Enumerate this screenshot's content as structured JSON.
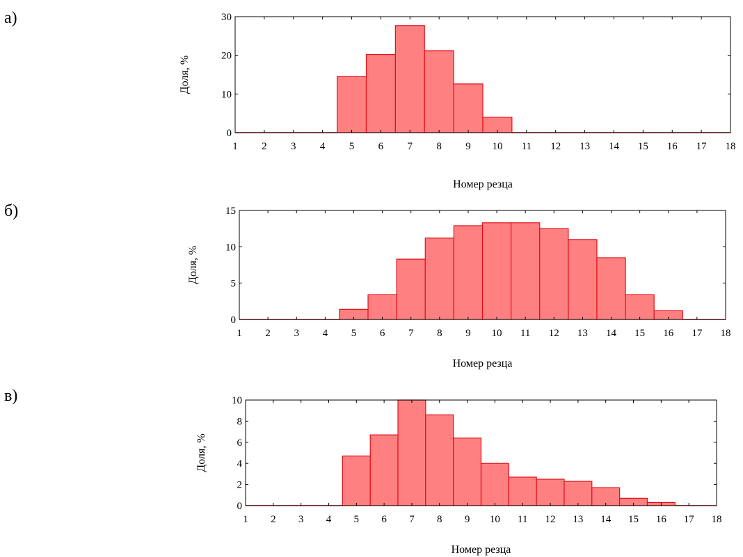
{
  "panels": [
    {
      "label": "а)"
    },
    {
      "label": "б)"
    },
    {
      "label": "в)"
    }
  ],
  "colors": {
    "bar_fill": "#ff8080",
    "bar_stroke": "#e0101a",
    "axis": "#000000"
  },
  "chart_data": [
    {
      "type": "bar",
      "panel": "а)",
      "xlabel": "Номер резца",
      "ylabel": "Доля, %",
      "categories": [
        1,
        2,
        3,
        4,
        5,
        6,
        7,
        8,
        9,
        10,
        11,
        12,
        13,
        14,
        15,
        16,
        17,
        18
      ],
      "x_ticks": [
        1,
        2,
        3,
        4,
        5,
        6,
        7,
        8,
        9,
        10,
        11,
        12,
        13,
        14,
        15,
        16,
        17,
        18
      ],
      "values": [
        0,
        0,
        0,
        0,
        14.5,
        20.2,
        27.7,
        21.2,
        12.6,
        4.0,
        0,
        0,
        0,
        0,
        0,
        0,
        0,
        0
      ],
      "xlim": [
        1,
        18
      ],
      "ylim": [
        0,
        30
      ],
      "y_ticks": [
        0,
        10,
        20,
        30
      ],
      "grid": false
    },
    {
      "type": "bar",
      "panel": "б)",
      "xlabel": "Номер резца",
      "ylabel": "Доля, %",
      "categories": [
        1,
        2,
        3,
        4,
        5,
        6,
        7,
        8,
        9,
        10,
        11,
        12,
        13,
        14,
        15,
        16,
        17,
        18
      ],
      "x_ticks": [
        1,
        2,
        3,
        4,
        5,
        6,
        7,
        8,
        9,
        10,
        11,
        12,
        13,
        14,
        15,
        16,
        17,
        18
      ],
      "values": [
        0,
        0,
        0,
        0,
        1.4,
        3.4,
        8.3,
        11.2,
        12.9,
        13.3,
        13.3,
        12.5,
        11.0,
        8.5,
        3.4,
        1.2,
        0,
        0
      ],
      "xlim": [
        1,
        18
      ],
      "ylim": [
        0,
        15
      ],
      "y_ticks": [
        0,
        5,
        10,
        15
      ],
      "grid": false
    },
    {
      "type": "bar",
      "panel": "в)",
      "xlabel": "Номер резца",
      "ylabel": "Доля, %",
      "categories": [
        1,
        2,
        3,
        4,
        5,
        6,
        7,
        8,
        9,
        10,
        11,
        12,
        13,
        14,
        15,
        16,
        17,
        18
      ],
      "x_ticks": [
        1,
        2,
        3,
        4,
        5,
        6,
        7,
        8,
        9,
        10,
        11,
        12,
        13,
        14,
        15,
        16,
        17,
        18
      ],
      "values": [
        0,
        0,
        0,
        0,
        4.7,
        6.7,
        10.0,
        8.6,
        6.4,
        4.0,
        2.7,
        2.5,
        2.3,
        1.7,
        0.7,
        0.3,
        0,
        0
      ],
      "xlim": [
        1,
        18
      ],
      "ylim": [
        0,
        10
      ],
      "y_ticks": [
        0,
        2,
        4,
        6,
        8,
        10
      ],
      "grid": false
    }
  ]
}
